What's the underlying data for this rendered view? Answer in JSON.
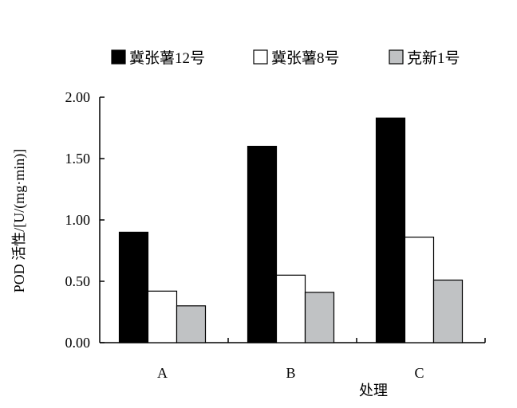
{
  "chart_data": {
    "type": "bar",
    "title": "",
    "xlabel": "处理",
    "ylabel": "POD 活性/[U/(mg·min)]",
    "categories": [
      "A",
      "B",
      "C"
    ],
    "series": [
      {
        "name": "冀张薯12号",
        "values": [
          0.9,
          1.6,
          1.83
        ],
        "color": "#000000",
        "stroke": "#000000"
      },
      {
        "name": "冀张薯8号",
        "values": [
          0.42,
          0.55,
          0.86
        ],
        "color": "#ffffff",
        "stroke": "#000000"
      },
      {
        "name": "克新1号",
        "values": [
          0.3,
          0.41,
          0.51
        ],
        "color": "#c0c2c4",
        "stroke": "#000000"
      }
    ],
    "yticks": [
      "0.00",
      "0.50",
      "1.00",
      "1.50",
      "2.00"
    ],
    "ylim": [
      0,
      2.0
    ],
    "grid": false,
    "legend_position": "top"
  }
}
